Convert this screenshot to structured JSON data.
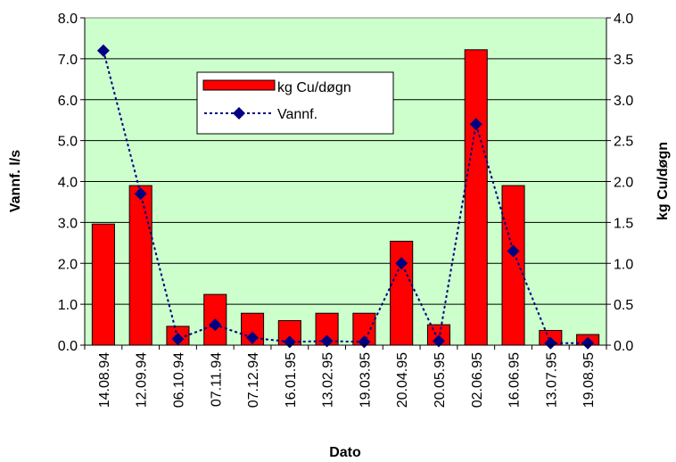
{
  "chart_data": {
    "type": "bar",
    "categories": [
      "14.08.94",
      "12.09.94",
      "06.10.94",
      "07.11.94",
      "07.12.94",
      "16.01.95",
      "13.02.95",
      "19.03.95",
      "20.04.95",
      "20.05.95",
      "02.06.95",
      "16.06.95",
      "13.07.95",
      "19.08.95"
    ],
    "series": [
      {
        "name": "kg Cu/døgn",
        "type": "bar",
        "axis": "right",
        "color": "#ff0000",
        "values": [
          1.48,
          1.95,
          0.23,
          0.62,
          0.39,
          0.3,
          0.39,
          0.39,
          1.27,
          0.25,
          3.61,
          1.95,
          0.18,
          0.13
        ]
      },
      {
        "name": "Vannf.",
        "type": "line",
        "axis": "left",
        "color": "#000080",
        "line_style": "dotted",
        "marker": "diamond",
        "values": [
          7.2,
          3.7,
          0.15,
          0.5,
          0.18,
          0.08,
          0.1,
          0.08,
          2.0,
          0.1,
          5.4,
          2.3,
          0.05,
          0.05
        ]
      }
    ],
    "xlabel": "Dato",
    "ylabel": "Vannf. l/s",
    "ylabel_right": "kg Cu/døgn",
    "ylim": [
      0,
      8
    ],
    "ylim_right": [
      0,
      4
    ],
    "yticks": [
      "0.0",
      "1.0",
      "2.0",
      "3.0",
      "4.0",
      "5.0",
      "6.0",
      "7.0",
      "8.0"
    ],
    "yticks_right": [
      "0.0",
      "0.5",
      "1.0",
      "1.5",
      "2.0",
      "2.5",
      "3.0",
      "3.5",
      "4.0"
    ],
    "grid": true,
    "plot_background": "#ccffcc",
    "legend_position": "upper-center"
  }
}
